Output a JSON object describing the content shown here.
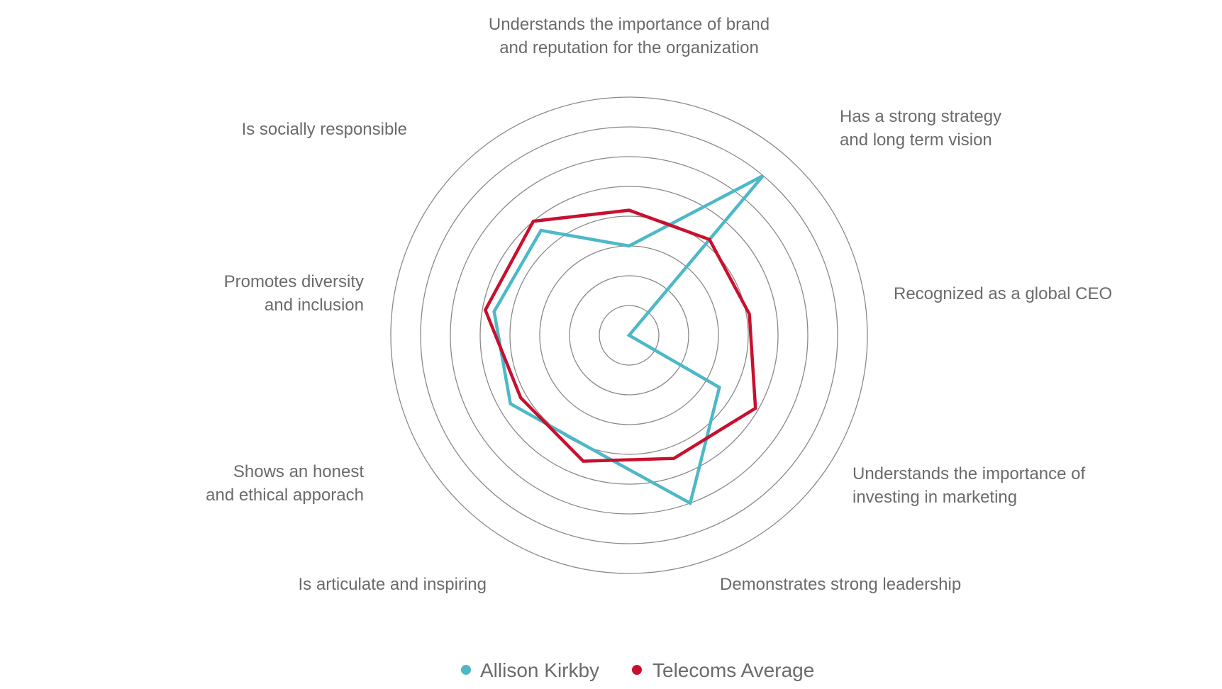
{
  "chart_data": {
    "type": "radar",
    "title": "",
    "axes": [
      {
        "label": [
          "Understands the importance of brand",
          "and reputation for the organization"
        ]
      },
      {
        "label": [
          "Has a strong strategy",
          "and long term vision"
        ]
      },
      {
        "label": [
          "Recognized as a global CEO"
        ]
      },
      {
        "label": [
          "Understands the importance of",
          "investing in marketing"
        ]
      },
      {
        "label": [
          "Demonstrates strong leadership"
        ]
      },
      {
        "label": [
          "Is articulate and inspiring"
        ]
      },
      {
        "label": [
          "Shows an honest",
          "and ethical apporach"
        ]
      },
      {
        "label": [
          "Promotes diversity",
          "and inclusion"
        ]
      },
      {
        "label": [
          "Is socially responsible"
        ]
      }
    ],
    "range": [
      0,
      8
    ],
    "rings": 8,
    "grid": true,
    "legend_position": "bottom-center",
    "series": [
      {
        "name": "Allison Kirkby",
        "color": "#4db8c7",
        "values": [
          3.0,
          7.0,
          0.0,
          3.5,
          6.0,
          4.0,
          4.6,
          4.6,
          4.6
        ]
      },
      {
        "name": "Telecoms Average",
        "color": "#c8102e",
        "values": [
          4.2,
          4.2,
          4.1,
          4.9,
          4.4,
          4.5,
          4.2,
          4.9,
          5.0
        ]
      }
    ]
  }
}
